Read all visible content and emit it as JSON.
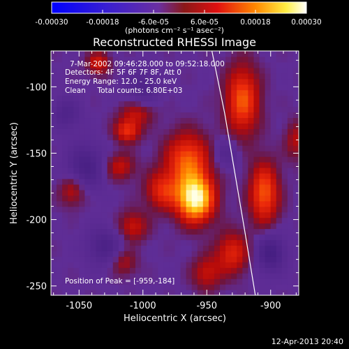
{
  "header": {
    "title": "Reconstructed RHESSI Image",
    "units": "(photons cm⁻² s⁻¹ asec⁻²)"
  },
  "footer": {
    "timestamp": "12-Apr-2013 20:40"
  },
  "annotations": {
    "time_range": "7-Mar-2002 09:46:28.000 to 09:52:18.000",
    "detectors": "Detectors: 4F 5F 6F 7F 8F, Att 0",
    "energy": "Energy Range: 12.0 - 25.0 keV",
    "clean": "Clean     Total counts: 6.80E+03",
    "peak": "Position of Peak = [-959,-184]"
  },
  "colorbar": {
    "min": -0.0003,
    "max": 0.0003,
    "tick_values": [
      -0.0003,
      -0.00018,
      -6e-05,
      6e-05,
      0.00018,
      0.0003
    ],
    "tick_labels": [
      "-0.00030",
      "-0.00018",
      "-6.0e-05",
      "6.0e-05",
      "0.00018",
      "0.00030"
    ]
  },
  "chart_data": {
    "type": "heatmap",
    "title": "Reconstructed RHESSI Image",
    "xlabel": "Heliocentric X (arcsec)",
    "ylabel": "Heliocentric Y (arcsec)",
    "xlim": [
      -1072,
      -878
    ],
    "ylim": [
      -257,
      -73
    ],
    "xticks": [
      -1050,
      -1000,
      -950,
      -900
    ],
    "xtick_labels": [
      "-1050",
      "-1000",
      "-950",
      "-900"
    ],
    "yticks": [
      -250,
      -200,
      -150,
      -100
    ],
    "ytick_labels": [
      "-250",
      "-200",
      "-150",
      "-100"
    ],
    "peak_position": [
      -959,
      -184
    ],
    "colormap": "blue-purple-red-yellow-white",
    "limb_curve": [
      [
        -946,
        -73
      ],
      [
        -936,
        -120
      ],
      [
        -928,
        -165
      ],
      [
        -920,
        -210
      ],
      [
        -912,
        -257
      ]
    ],
    "blobs": [
      {
        "x": -959,
        "y": -184,
        "sx": 10,
        "sy": 12,
        "amp": 1.0
      },
      {
        "x": -965,
        "y": -155,
        "sx": 12,
        "sy": 14,
        "amp": 0.55
      },
      {
        "x": -985,
        "y": -178,
        "sx": 9,
        "sy": 10,
        "amp": 0.4
      },
      {
        "x": -1012,
        "y": -133,
        "sx": 7,
        "sy": 6,
        "amp": 0.45
      },
      {
        "x": -1018,
        "y": -160,
        "sx": 8,
        "sy": 7,
        "amp": 0.3
      },
      {
        "x": -1035,
        "y": -82,
        "sx": 6,
        "sy": 6,
        "amp": 0.35
      },
      {
        "x": -1005,
        "y": -120,
        "sx": 9,
        "sy": 6,
        "amp": 0.28
      },
      {
        "x": -922,
        "y": -110,
        "sx": 9,
        "sy": 18,
        "amp": 0.55
      },
      {
        "x": -905,
        "y": -180,
        "sx": 8,
        "sy": 16,
        "amp": 0.55
      },
      {
        "x": -930,
        "y": -225,
        "sx": 9,
        "sy": 11,
        "amp": 0.4
      },
      {
        "x": -1055,
        "y": -178,
        "sx": 7,
        "sy": 8,
        "amp": 0.3
      },
      {
        "x": -1008,
        "y": -205,
        "sx": 8,
        "sy": 8,
        "amp": 0.32
      },
      {
        "x": -1015,
        "y": -232,
        "sx": 7,
        "sy": 7,
        "amp": 0.25
      },
      {
        "x": -950,
        "y": -240,
        "sx": 8,
        "sy": 9,
        "amp": 0.3
      },
      {
        "x": -880,
        "y": -140,
        "sx": 6,
        "sy": 10,
        "amp": 0.25
      }
    ],
    "negatives": [
      {
        "x": -1045,
        "y": -160,
        "sx": 10,
        "sy": 12,
        "amp": -0.35
      },
      {
        "x": -1030,
        "y": -220,
        "sx": 10,
        "sy": 10,
        "amp": -0.3
      },
      {
        "x": -1000,
        "y": -100,
        "sx": 9,
        "sy": 9,
        "amp": -0.25
      },
      {
        "x": -900,
        "y": -225,
        "sx": 8,
        "sy": 10,
        "amp": -0.4
      },
      {
        "x": -935,
        "y": -150,
        "sx": 7,
        "sy": 8,
        "amp": -0.2
      },
      {
        "x": -1060,
        "y": -120,
        "sx": 8,
        "sy": 9,
        "amp": -0.25
      }
    ]
  }
}
